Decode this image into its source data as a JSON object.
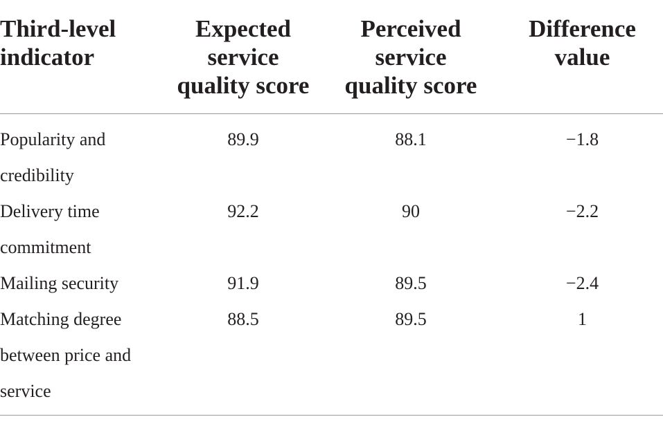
{
  "table": {
    "headers": [
      [
        "Third-level",
        "indicator"
      ],
      [
        "Expected",
        "service",
        "quality score"
      ],
      [
        "Perceived",
        "service",
        "quality score"
      ],
      [
        "Difference",
        "value"
      ]
    ],
    "rows": [
      {
        "indicator": "Popularity and credibility",
        "expected": "89.9",
        "perceived": "88.1",
        "difference": "−1.8"
      },
      {
        "indicator": "Delivery time commitment",
        "expected": "92.2",
        "perceived": "90",
        "difference": "−2.2"
      },
      {
        "indicator": "Mailing security",
        "expected": "91.9",
        "perceived": "89.5",
        "difference": "−2.4"
      },
      {
        "indicator": "Matching degree between price and service",
        "expected": "88.5",
        "perceived": "89.5",
        "difference": "1"
      }
    ]
  }
}
